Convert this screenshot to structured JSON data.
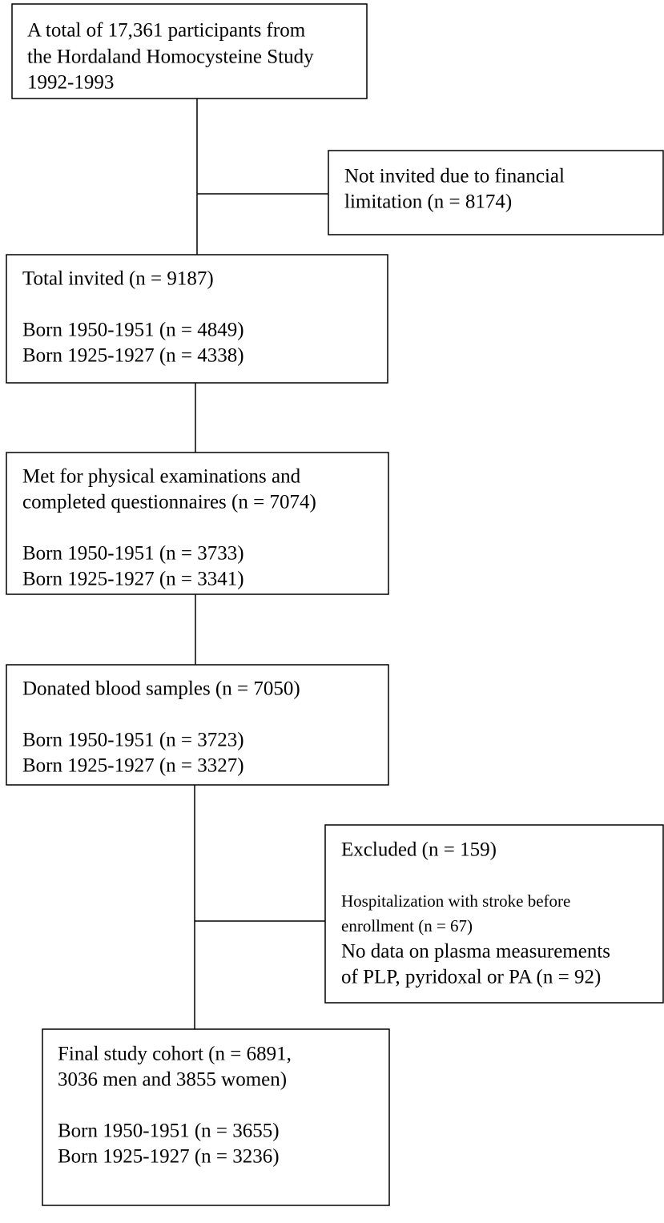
{
  "nodes": [
    {
      "lines": [
        "A total of 17,361 participants from",
        "the Hordaland Homocysteine Study",
        "1992-1993"
      ]
    },
    {
      "lines": [
        "Not invited due to financial",
        "limitation (n = 8174)"
      ]
    },
    {
      "lines": [
        "Total invited (n = 9187)"
      ],
      "details": [
        "Born 1950-1951 (n = 4849)",
        "Born 1925-1927 (n = 4338)"
      ]
    },
    {
      "lines": [
        "Met for physical examinations and",
        "completed questionnaires (n = 7074)"
      ],
      "details": [
        "Born 1950-1951 (n = 3733)",
        "Born 1925-1927 (n = 3341)"
      ]
    },
    {
      "lines": [
        "Donated blood samples (n = 7050)"
      ],
      "details": [
        "Born 1950-1951 (n = 3723)",
        "Born 1925-1927 (n = 3327)"
      ]
    },
    {
      "lines": [
        "Excluded (n = 159)"
      ],
      "details": [
        "Hospitalization with stroke before",
        "enrollment (n = 67)",
        "No data on plasma measurements",
        "of PLP, pyridoxal or PA (n = 92)"
      ]
    },
    {
      "lines": [
        "Final study cohort (n = 6891,",
        "3036 men and 3855 women)"
      ],
      "details": [
        "Born 1950-1951 (n = 3655)",
        "Born 1925-1927 (n = 3236)"
      ]
    }
  ]
}
